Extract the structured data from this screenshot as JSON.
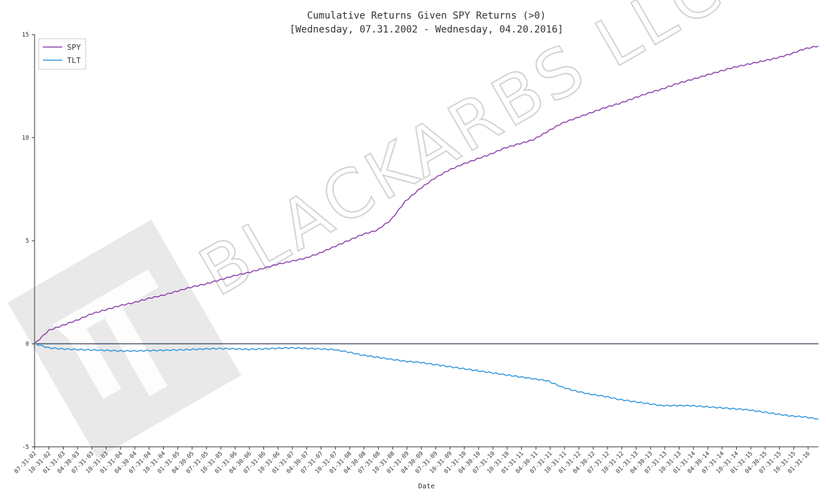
{
  "chart_data": {
    "type": "line",
    "title": "Cumulative Returns Given SPY Returns (>0)",
    "subtitle": "[Wednesday, 07.31.2002 - Wednesday, 04.20.2016]",
    "xlabel": "Date",
    "ylabel": "",
    "ylim": [
      -5,
      15
    ],
    "yticks": [
      -5,
      0,
      5,
      10,
      15
    ],
    "legend_position": "top-left",
    "watermark": "BLACKARBS LLC",
    "x_tick_labels": [
      "07-31-02",
      "10-31-02",
      "01-31-03",
      "04-30-03",
      "07-31-03",
      "10-31-03",
      "01-31-04",
      "04-30-04",
      "07-31-04",
      "10-31-04",
      "01-31-05",
      "04-30-05",
      "07-31-05",
      "10-31-05",
      "01-31-06",
      "04-30-06",
      "07-31-06",
      "10-31-06",
      "01-31-07",
      "04-30-07",
      "07-31-07",
      "10-31-07",
      "01-31-08",
      "04-30-08",
      "07-31-08",
      "10-31-08",
      "01-31-09",
      "04-30-09",
      "07-31-09",
      "10-31-09",
      "01-31-10",
      "04-30-10",
      "07-31-10",
      "10-31-10",
      "01-31-11",
      "04-30-11",
      "07-31-11",
      "10-31-11",
      "01-31-12",
      "04-30-12",
      "07-31-12",
      "10-31-12",
      "01-31-13",
      "04-30-13",
      "07-31-13",
      "10-31-13",
      "01-31-14",
      "04-30-14",
      "07-31-14",
      "10-31-14",
      "01-31-15",
      "04-30-15",
      "07-31-15",
      "10-31-15",
      "01-31-16"
    ],
    "x": [
      "2002-07",
      "2002-10",
      "2003-01",
      "2003-04",
      "2003-07",
      "2003-10",
      "2004-01",
      "2004-04",
      "2004-07",
      "2004-10",
      "2005-01",
      "2005-04",
      "2005-07",
      "2005-10",
      "2006-01",
      "2006-04",
      "2006-07",
      "2006-10",
      "2007-01",
      "2007-04",
      "2007-07",
      "2007-10",
      "2008-01",
      "2008-04",
      "2008-07",
      "2008-10",
      "2009-01",
      "2009-04",
      "2009-07",
      "2009-10",
      "2010-01",
      "2010-04",
      "2010-07",
      "2010-10",
      "2011-01",
      "2011-04",
      "2011-07",
      "2011-10",
      "2012-01",
      "2012-04",
      "2012-07",
      "2012-10",
      "2013-01",
      "2013-04",
      "2013-07",
      "2013-10",
      "2014-01",
      "2014-04",
      "2014-07",
      "2014-10",
      "2015-01",
      "2015-04",
      "2015-07",
      "2015-10",
      "2016-01",
      "2016-04"
    ],
    "series": [
      {
        "name": "SPY",
        "color": "#8e44ad",
        "values": [
          0.0,
          0.65,
          0.9,
          1.15,
          1.45,
          1.65,
          1.85,
          2.0,
          2.2,
          2.35,
          2.55,
          2.75,
          2.9,
          3.1,
          3.3,
          3.45,
          3.65,
          3.85,
          4.0,
          4.15,
          4.4,
          4.7,
          5.0,
          5.3,
          5.5,
          6.0,
          6.9,
          7.5,
          8.0,
          8.4,
          8.7,
          8.95,
          9.2,
          9.5,
          9.7,
          9.9,
          10.3,
          10.7,
          10.95,
          11.2,
          11.45,
          11.65,
          11.9,
          12.15,
          12.35,
          12.6,
          12.8,
          13.0,
          13.2,
          13.4,
          13.55,
          13.7,
          13.85,
          14.05,
          14.3,
          14.45
        ]
      },
      {
        "name": "TLT",
        "color": "#3498db",
        "values": [
          0.0,
          -0.2,
          -0.25,
          -0.28,
          -0.3,
          -0.32,
          -0.35,
          -0.35,
          -0.33,
          -0.32,
          -0.3,
          -0.28,
          -0.25,
          -0.23,
          -0.25,
          -0.27,
          -0.25,
          -0.22,
          -0.2,
          -0.22,
          -0.25,
          -0.28,
          -0.4,
          -0.55,
          -0.65,
          -0.75,
          -0.85,
          -0.9,
          -1.0,
          -1.1,
          -1.2,
          -1.3,
          -1.4,
          -1.5,
          -1.6,
          -1.7,
          -1.8,
          -2.1,
          -2.3,
          -2.45,
          -2.55,
          -2.7,
          -2.8,
          -2.9,
          -3.0,
          -3.0,
          -3.0,
          -3.05,
          -3.1,
          -3.15,
          -3.2,
          -3.3,
          -3.4,
          -3.5,
          -3.55,
          -3.65
        ]
      }
    ]
  }
}
